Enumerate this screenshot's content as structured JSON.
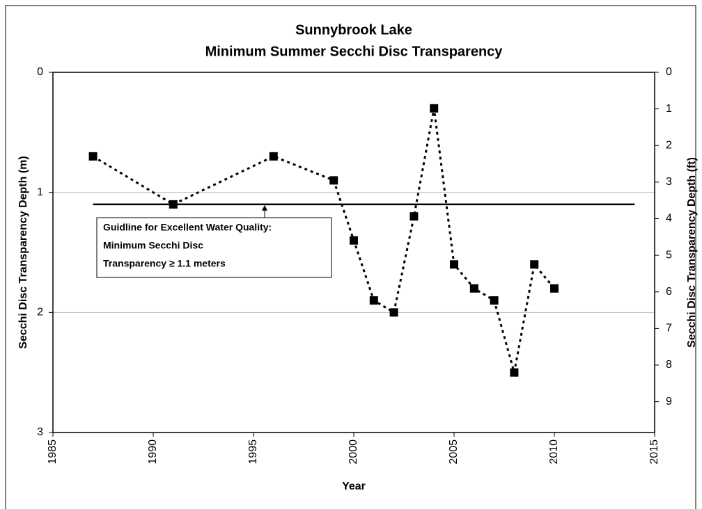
{
  "chart_data": {
    "type": "line",
    "title": [
      "Sunnybrook Lake",
      "Minimum Summer Secchi Disc Transparency"
    ],
    "x_label": "Year",
    "y_label": "Secchi Disc Transparency Depth (m)",
    "y2_label": "Secchi Disc Transparency Depth (ft)",
    "x": [
      1987,
      1991,
      1996,
      1999,
      2000,
      2001,
      2002,
      2003,
      2004,
      2005,
      2006,
      2007,
      2008,
      2009,
      2010
    ],
    "series": [
      {
        "name": "Minimum Secchi Disc Transparency",
        "color": "#000000",
        "values": [
          0.7,
          1.1,
          0.7,
          0.9,
          1.4,
          1.9,
          2.0,
          1.2,
          0.3,
          1.6,
          1.8,
          1.9,
          2.5,
          1.6,
          1.8
        ]
      }
    ],
    "xlim": [
      1985,
      2015
    ],
    "xticks": [
      1985,
      1990,
      1995,
      2000,
      2005,
      2010,
      2015
    ],
    "ylim": [
      0,
      3
    ],
    "yticks": [
      0,
      1,
      2,
      3
    ],
    "y_inverted": true,
    "y2lim": [
      0,
      9.843
    ],
    "y2ticks": [
      0,
      1,
      2,
      3,
      4,
      5,
      6,
      7,
      8,
      9
    ],
    "grid": true,
    "guideline": {
      "value": 1.1,
      "x": [
        1987,
        2014
      ],
      "text": [
        "Guidline for Excellent Water Quality:",
        "Minimum Secchi Disc",
        "Transparency ≥ 1.1 meters"
      ]
    }
  }
}
